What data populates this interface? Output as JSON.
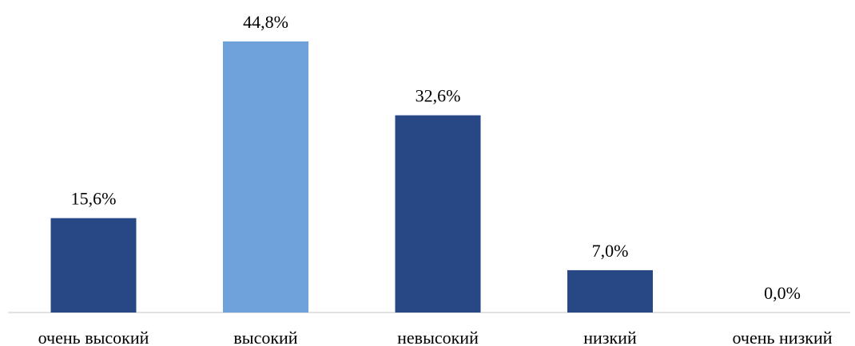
{
  "chart_data": {
    "type": "bar",
    "categories": [
      "очень высокий",
      "высокий",
      "невысокий",
      "низкий",
      "очень низкий"
    ],
    "values": [
      15.6,
      44.8,
      32.6,
      7.0,
      0.0
    ],
    "value_labels": [
      "15,6%",
      "44,8%",
      "32,6%",
      "7,0%",
      "0,0%"
    ],
    "unit": "%",
    "ylim": [
      0,
      44.8
    ],
    "grid": false,
    "legend": "none",
    "colors": {
      "default": "#284785",
      "highlight": "#6fa1da",
      "axis": "#d9d9d9"
    },
    "highlight_index": 1
  }
}
